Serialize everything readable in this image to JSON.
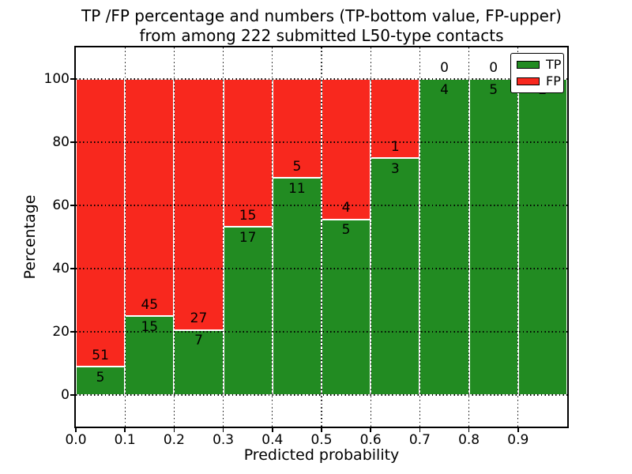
{
  "chart_data": {
    "type": "bar",
    "stacked": true,
    "title_line1": "TP /FP percentage and numbers (TP-bottom value, FP-upper)",
    "title_line2": "from among 222 submitted L50-type contacts",
    "xlabel": "Predicted probability",
    "ylabel": "Percentage",
    "total_submitted": 222,
    "xlim": [
      0.0,
      1.0
    ],
    "ylim": [
      -10,
      110
    ],
    "x_tick_labels": [
      "0.0",
      "0.1",
      "0.2",
      "0.3",
      "0.4",
      "0.5",
      "0.6",
      "0.7",
      "0.8",
      "0.9"
    ],
    "y_tick_values": [
      0,
      20,
      40,
      60,
      80,
      100
    ],
    "y_tick_labels": [
      "0",
      "20",
      "40",
      "60",
      "80",
      "100"
    ],
    "grid": {
      "style": "dotted",
      "color": "#000000",
      "above_bars": true
    },
    "colors": {
      "tp": "#228b22",
      "fp": "#f8281e",
      "bar_edge": "#ffffff"
    },
    "categories": [
      "0.0-0.1",
      "0.1-0.2",
      "0.2-0.3",
      "0.3-0.4",
      "0.4-0.5",
      "0.5-0.6",
      "0.6-0.7",
      "0.7-0.8",
      "0.8-0.9",
      "0.9-1.0"
    ],
    "series": [
      {
        "name": "TP",
        "values": [
          5,
          15,
          7,
          17,
          11,
          5,
          3,
          4,
          5,
          2
        ]
      },
      {
        "name": "FP",
        "values": [
          51,
          45,
          27,
          15,
          5,
          4,
          1,
          0,
          0,
          0
        ]
      }
    ],
    "tp_percent": [
      8.93,
      25.0,
      20.59,
      53.13,
      68.75,
      55.56,
      75.0,
      100.0,
      100.0,
      100.0
    ],
    "legend": {
      "position": "upper-right",
      "entries": [
        {
          "label": "TP",
          "color_key": "tp"
        },
        {
          "label": "FP",
          "color_key": "fp"
        }
      ]
    }
  }
}
